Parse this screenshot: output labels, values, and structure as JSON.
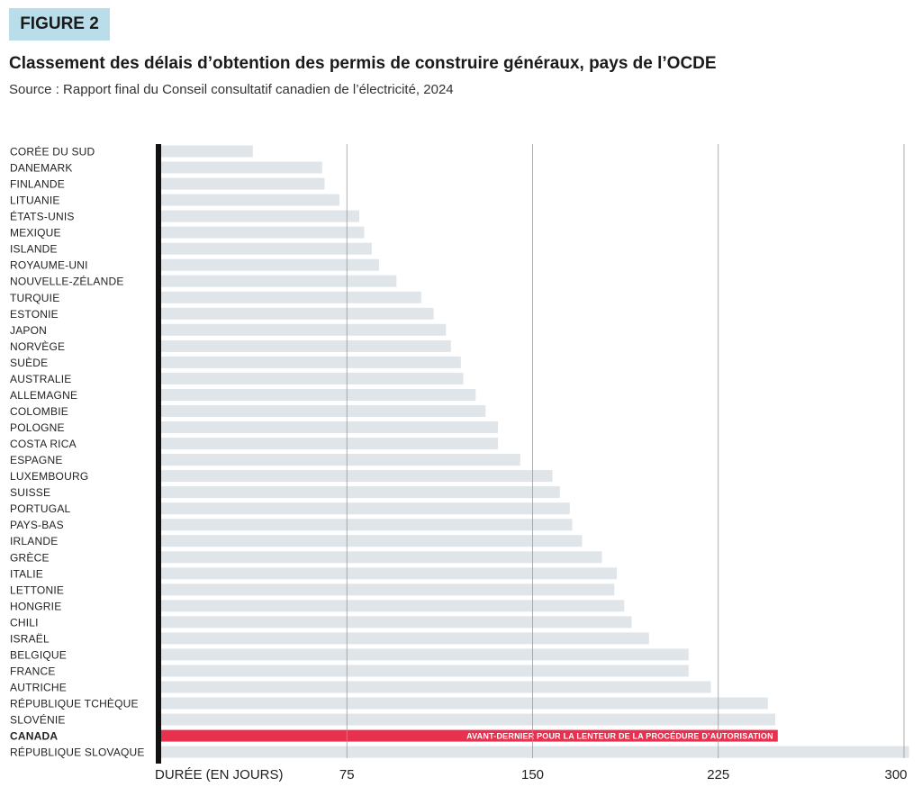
{
  "figure_label": "FIGURE 2",
  "title": "Classement des délais d’obtention des permis de construire généraux, pays de l’OCDE",
  "subtitle": "Source : Rapport final du Conseil consultatif canadien de l’électricité, 2024",
  "colors": {
    "bar": "#dfe5e8",
    "highlight": "#e8304f",
    "axis": "#111111",
    "grid": "#9a9a9a",
    "badge": "#b9dde9"
  },
  "chart_data": {
    "type": "bar",
    "orientation": "horizontal",
    "xlabel": "DURÉE (EN JOURS)",
    "xlim": [
      0,
      300
    ],
    "xticks": [
      75,
      150,
      225,
      300
    ],
    "grid": true,
    "categories": [
      "CORÉE DU SUD",
      "DANEMARK",
      "FINLANDE",
      "LITUANIE",
      "ÉTATS-UNIS",
      "MEXIQUE",
      "ISLANDE",
      "ROYAUME-UNI",
      "NOUVELLE-ZÉLANDE",
      "TURQUIE",
      "ESTONIE",
      "JAPON",
      "NORVÈGE",
      "SUÈDE",
      "AUSTRALIE",
      "ALLEMAGNE",
      "COLOMBIE",
      "POLOGNE",
      "COSTA RICA",
      "ESPAGNE",
      "LUXEMBOURG",
      "SUISSE",
      "PORTUGAL",
      "PAYS-BAS",
      "IRLANDE",
      "GRÈCE",
      "ITALIE",
      "LETTONIE",
      "HONGRIE",
      "CHILI",
      "ISRAËL",
      "BELGIQUE",
      "FRANCE",
      "AUTRICHE",
      "RÉPUBLIQUE TCHÈQUE",
      "SLOVÉNIE",
      "CANADA",
      "RÉPUBLIQUE SLOVAQUE"
    ],
    "values": [
      37,
      65,
      66,
      72,
      80,
      82,
      85,
      88,
      95,
      105,
      110,
      115,
      117,
      121,
      122,
      127,
      131,
      136,
      136,
      145,
      158,
      161,
      165,
      166,
      170,
      178,
      184,
      183,
      187,
      190,
      197,
      213,
      213,
      222,
      245,
      248,
      249,
      302
    ],
    "highlight": {
      "category": "CANADA",
      "annotation": "AVANT-DERNIER POUR LA LENTEUR DE LA PROCÉDURE D’AUTORISATION"
    }
  }
}
